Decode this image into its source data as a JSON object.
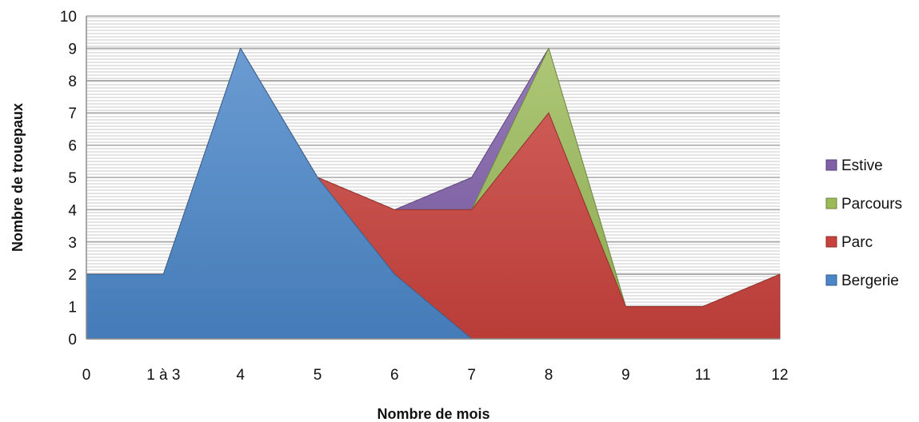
{
  "chart_data": {
    "type": "area",
    "stacked": true,
    "title": "",
    "xlabel": "Nombre de mois",
    "ylabel": "Nombre de trouepaux",
    "categories": [
      "0",
      "1 à 3",
      "4",
      "5",
      "6",
      "7",
      "8",
      "9",
      "11",
      "12"
    ],
    "ylim": [
      0,
      10
    ],
    "yticks": [
      0,
      1,
      2,
      3,
      4,
      5,
      6,
      7,
      8,
      9,
      10
    ],
    "grid": true,
    "legend_position": "right",
    "series": [
      {
        "name": "Bergerie",
        "color": "#4a86c8",
        "values": [
          2,
          2,
          9,
          5,
          2,
          0,
          0,
          0,
          0,
          0
        ]
      },
      {
        "name": "Parc",
        "color": "#c9413c",
        "values": [
          0,
          0,
          0,
          0,
          2,
          4,
          7,
          1,
          1,
          2
        ]
      },
      {
        "name": "Parcours",
        "color": "#9bbb59",
        "values": [
          0,
          0,
          0,
          0,
          0,
          0,
          2,
          0,
          0,
          0
        ]
      },
      {
        "name": "Estive",
        "color": "#7f5fa8",
        "values": [
          0,
          0,
          0,
          0,
          0,
          1,
          0,
          0,
          0,
          0
        ]
      }
    ]
  }
}
